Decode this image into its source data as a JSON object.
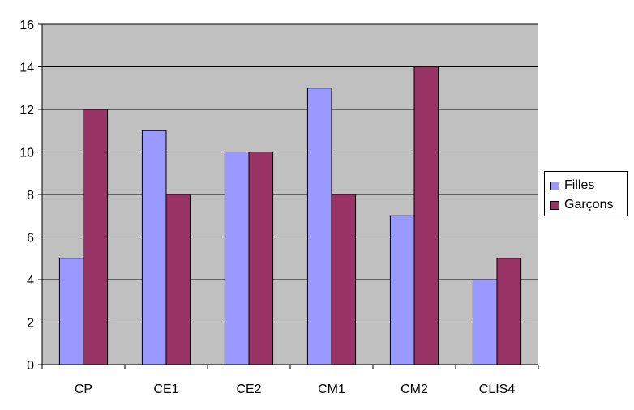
{
  "chart_data": {
    "type": "bar",
    "title": "",
    "xlabel": "",
    "ylabel": "",
    "categories": [
      "CP",
      "CE1",
      "CE2",
      "CM1",
      "CM2",
      "CLIS4"
    ],
    "series": [
      {
        "name": "Filles",
        "values": [
          5,
          11,
          10,
          13,
          7,
          4
        ],
        "color": "#9999ff"
      },
      {
        "name": "Garçons",
        "values": [
          12,
          8,
          10,
          8,
          14,
          5
        ],
        "color": "#993366"
      }
    ],
    "ylim": [
      0,
      16
    ],
    "yticks": [
      0,
      2,
      4,
      6,
      8,
      10,
      12,
      14,
      16
    ],
    "grid": true,
    "plot_background": "#c0c0c0",
    "legend_position": "right"
  }
}
